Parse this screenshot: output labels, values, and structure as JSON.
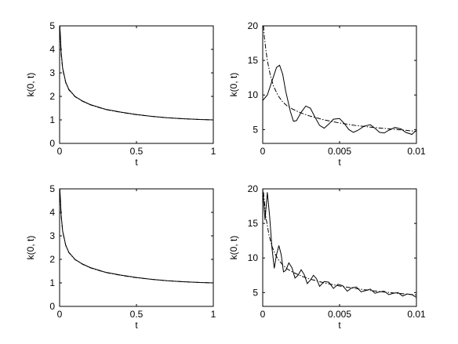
{
  "chart_data": [
    {
      "type": "line",
      "panel": "top-left",
      "xlabel": "t",
      "ylabel": "k(0, t)",
      "xlim": [
        0,
        1
      ],
      "ylim": [
        0,
        5
      ],
      "xticks": [
        0,
        0.5,
        1
      ],
      "xtick_labels": [
        "0",
        "0.5",
        "1"
      ],
      "yticks": [
        0,
        1,
        2,
        3,
        4,
        5
      ],
      "ytick_labels": [
        "0",
        "1",
        "2",
        "3",
        "4",
        "5"
      ],
      "grid": false,
      "series": [
        {
          "style": "solid",
          "x": [
            0.001,
            0.005,
            0.01,
            0.02,
            0.04,
            0.06,
            0.1,
            0.15,
            0.2,
            0.3,
            0.4,
            0.5,
            0.6,
            0.7,
            0.8,
            0.9,
            1.0
          ],
          "y": [
            5.0,
            4.6,
            3.9,
            3.2,
            2.6,
            2.3,
            2.0,
            1.8,
            1.65,
            1.45,
            1.33,
            1.23,
            1.15,
            1.09,
            1.05,
            1.02,
            1.0
          ]
        },
        {
          "style": "dashdot",
          "x": [
            0.001,
            0.005,
            0.01,
            0.02,
            0.04,
            0.06,
            0.1,
            0.15,
            0.2,
            0.3,
            0.4,
            0.5,
            0.6,
            0.7,
            0.8,
            0.9,
            1.0
          ],
          "y": [
            5.0,
            4.5,
            3.8,
            3.15,
            2.58,
            2.28,
            1.99,
            1.79,
            1.64,
            1.44,
            1.32,
            1.22,
            1.15,
            1.09,
            1.05,
            1.02,
            1.0
          ]
        }
      ]
    },
    {
      "type": "line",
      "panel": "top-right",
      "xlabel": "t",
      "ylabel": "k(0, t)",
      "xlim": [
        0,
        0.01
      ],
      "ylim": [
        3,
        20
      ],
      "xticks": [
        0,
        0.005,
        0.01
      ],
      "xtick_labels": [
        "0",
        "0.005",
        "0.01"
      ],
      "yticks": [
        5,
        10,
        15,
        20
      ],
      "ytick_labels": [
        "5",
        "10",
        "15",
        "20"
      ],
      "grid": false,
      "series": [
        {
          "style": "solid",
          "x": [
            0,
            0.0003,
            0.0006,
            0.0009,
            0.0011,
            0.0013,
            0.0015,
            0.0018,
            0.002,
            0.0022,
            0.0025,
            0.0028,
            0.0031,
            0.0034,
            0.0037,
            0.004,
            0.0043,
            0.0046,
            0.005,
            0.0053,
            0.0056,
            0.0059,
            0.0062,
            0.0066,
            0.007,
            0.0073,
            0.0076,
            0.0079,
            0.0082,
            0.0086,
            0.009,
            0.0093,
            0.0097,
            0.01
          ],
          "y": [
            9.2,
            10.0,
            12.0,
            14.0,
            14.3,
            13.0,
            10.5,
            7.6,
            6.2,
            6.3,
            7.5,
            8.4,
            8.1,
            6.8,
            5.6,
            5.2,
            5.8,
            6.5,
            6.6,
            5.9,
            5.0,
            4.6,
            4.9,
            5.5,
            5.7,
            5.2,
            4.6,
            4.5,
            4.9,
            5.3,
            5.1,
            4.6,
            4.3,
            4.9
          ]
        },
        {
          "style": "dashdot",
          "x": [
            5e-05,
            0.0001,
            0.0002,
            0.0003,
            0.0005,
            0.0007,
            0.001,
            0.0013,
            0.0016,
            0.002,
            0.0025,
            0.003,
            0.004,
            0.005,
            0.006,
            0.007,
            0.008,
            0.009,
            0.01
          ],
          "y": [
            20.0,
            18.5,
            16.6,
            15.0,
            12.8,
            11.3,
            9.9,
            9.0,
            8.4,
            7.9,
            7.4,
            7.0,
            6.4,
            5.95,
            5.6,
            5.35,
            5.15,
            4.95,
            4.75
          ]
        }
      ]
    },
    {
      "type": "line",
      "panel": "bottom-left",
      "xlabel": "t",
      "ylabel": "k(0, t)",
      "xlim": [
        0,
        1
      ],
      "ylim": [
        0,
        5
      ],
      "xticks": [
        0,
        0.5,
        1
      ],
      "xtick_labels": [
        "0",
        "0.5",
        "1"
      ],
      "yticks": [
        0,
        1,
        2,
        3,
        4,
        5
      ],
      "ytick_labels": [
        "0",
        "1",
        "2",
        "3",
        "4",
        "5"
      ],
      "grid": false,
      "series": [
        {
          "style": "solid",
          "x": [
            0.001,
            0.005,
            0.01,
            0.02,
            0.04,
            0.06,
            0.1,
            0.15,
            0.2,
            0.3,
            0.4,
            0.5,
            0.6,
            0.7,
            0.8,
            0.9,
            1.0
          ],
          "y": [
            5.0,
            4.6,
            3.9,
            3.2,
            2.6,
            2.3,
            2.0,
            1.8,
            1.65,
            1.45,
            1.33,
            1.23,
            1.15,
            1.09,
            1.05,
            1.02,
            1.0
          ]
        },
        {
          "style": "dashdot",
          "x": [
            0.001,
            0.005,
            0.01,
            0.02,
            0.04,
            0.06,
            0.1,
            0.15,
            0.2,
            0.3,
            0.4,
            0.5,
            0.6,
            0.7,
            0.8,
            0.9,
            1.0
          ],
          "y": [
            5.0,
            4.55,
            3.85,
            3.18,
            2.59,
            2.29,
            1.99,
            1.79,
            1.64,
            1.44,
            1.32,
            1.22,
            1.15,
            1.09,
            1.05,
            1.02,
            1.0
          ]
        }
      ]
    },
    {
      "type": "line",
      "panel": "bottom-right",
      "xlabel": "t",
      "ylabel": "k(0, t)",
      "xlim": [
        0,
        0.01
      ],
      "ylim": [
        3,
        20
      ],
      "xticks": [
        0,
        0.005,
        0.01
      ],
      "xtick_labels": [
        "0",
        "0.005",
        "0.01"
      ],
      "yticks": [
        5,
        10,
        15,
        20
      ],
      "ytick_labels": [
        "5",
        "10",
        "15",
        "20"
      ],
      "grid": false,
      "series": [
        {
          "style": "solid",
          "x": [
            0,
            0.00015,
            0.0003,
            0.00045,
            0.0006,
            0.00075,
            0.0009,
            0.00105,
            0.0012,
            0.00135,
            0.0015,
            0.0017,
            0.0019,
            0.0021,
            0.0023,
            0.0025,
            0.0027,
            0.0029,
            0.0031,
            0.0033,
            0.0035,
            0.0037,
            0.004,
            0.0043,
            0.0046,
            0.0049,
            0.0052,
            0.0055,
            0.0058,
            0.0061,
            0.0064,
            0.0067,
            0.007,
            0.0073,
            0.0076,
            0.0079,
            0.0082,
            0.0085,
            0.0088,
            0.0091,
            0.0094,
            0.0097,
            0.01
          ],
          "y": [
            20.0,
            15.5,
            19.5,
            16.0,
            11.5,
            8.5,
            10.5,
            11.8,
            10.5,
            8.0,
            8.2,
            9.3,
            8.6,
            7.1,
            7.5,
            8.3,
            7.6,
            6.3,
            6.8,
            7.5,
            7.0,
            5.9,
            6.6,
            6.5,
            5.6,
            6.2,
            6.0,
            5.2,
            5.7,
            5.8,
            5.1,
            5.3,
            5.5,
            4.9,
            5.1,
            5.2,
            4.7,
            4.9,
            5.0,
            4.5,
            4.8,
            4.7,
            4.3
          ]
        },
        {
          "style": "dashdot",
          "x": [
            5e-05,
            0.0002,
            0.0004,
            0.0006,
            0.0008,
            0.001,
            0.0013,
            0.0016,
            0.002,
            0.0025,
            0.003,
            0.004,
            0.005,
            0.006,
            0.007,
            0.008,
            0.009,
            0.01
          ],
          "y": [
            19.5,
            16.0,
            13.4,
            11.7,
            10.6,
            9.8,
            9.0,
            8.4,
            7.9,
            7.4,
            7.0,
            6.4,
            5.95,
            5.6,
            5.3,
            5.05,
            4.85,
            4.65
          ]
        }
      ]
    }
  ]
}
